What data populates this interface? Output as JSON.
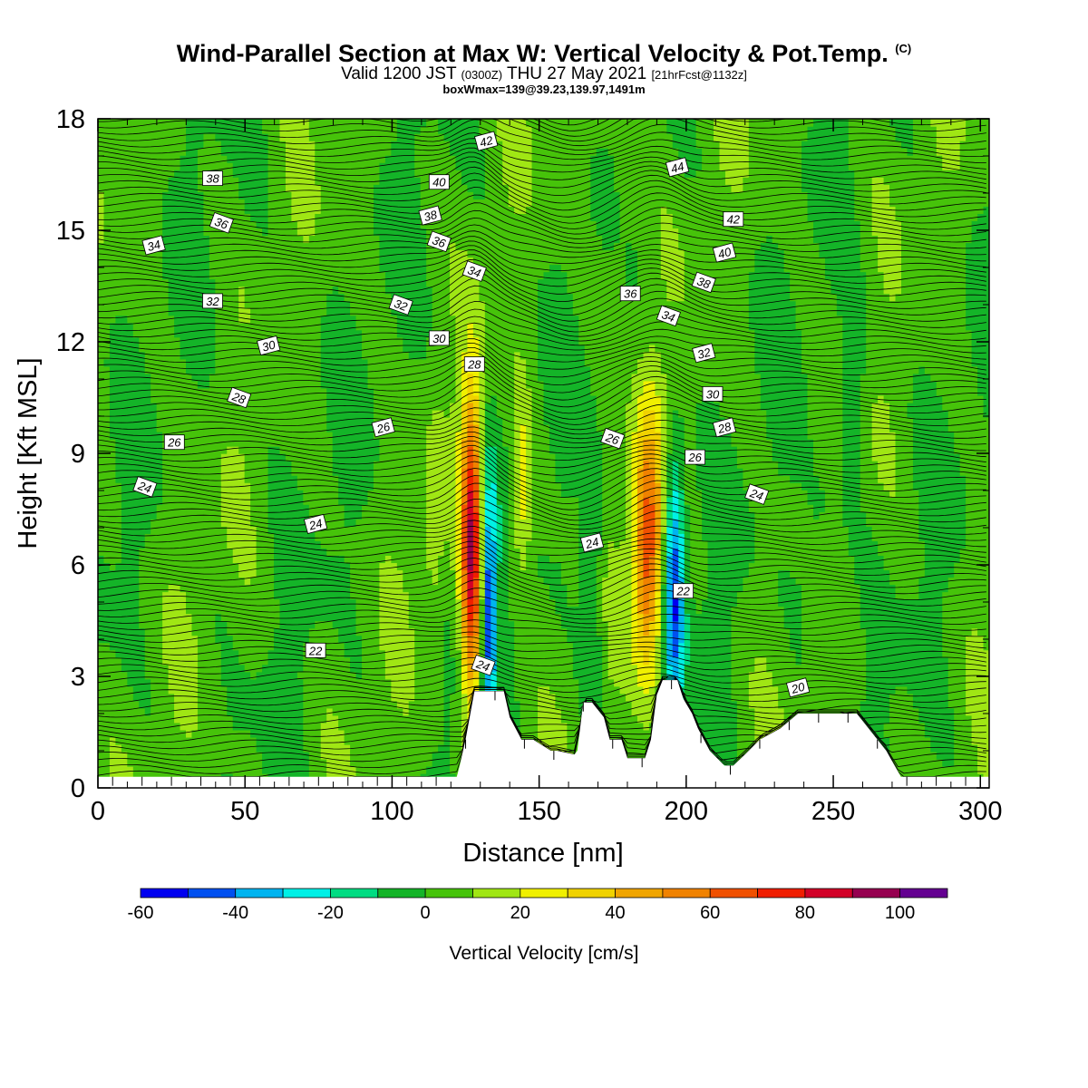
{
  "title": {
    "main": "Wind-Parallel Section at Max W: Vertical Velocity & Pot.Temp.",
    "copyright": "(C)",
    "valid_prefix": "Valid 1200 JST",
    "valid_utc": "(0300Z)",
    "valid_date": "THU 27 May 2021",
    "forecast": "[21hrFcst@1132z]",
    "box_info": "boxWmax=139@39.23,139.97,1491m"
  },
  "colors": {
    "background": "#ffffff",
    "frame": "#000000",
    "contour": "#000000",
    "terrain": "#ffffff"
  },
  "chart_data": {
    "type": "heatmap",
    "title": "Wind-Parallel Section at Max W: Vertical Velocity & Pot.Temp.",
    "xlabel": "Distance [nm]",
    "ylabel": "Height [Kft MSL]",
    "xlim": [
      0,
      303
    ],
    "ylim": [
      0,
      18
    ],
    "x_ticks": [
      0,
      50,
      100,
      150,
      200,
      250,
      300
    ],
    "x_tick_labels": [
      "0",
      "50",
      "100",
      "150",
      "200",
      "250",
      "300"
    ],
    "y_ticks": [
      0,
      3,
      6,
      9,
      12,
      15,
      18
    ],
    "y_tick_labels": [
      "0",
      "3",
      "6",
      "9",
      "12",
      "15",
      "18"
    ],
    "grid": false,
    "colorbar": {
      "label": "Vertical Velocity [cm/s]",
      "placement": "bottom",
      "tick_labels": [
        "-60",
        "-40",
        "-20",
        "0",
        "20",
        "40",
        "60",
        "80",
        "100"
      ],
      "bins": [
        {
          "from": -60,
          "to": -50,
          "color": "#0000f0"
        },
        {
          "from": -50,
          "to": -40,
          "color": "#0050f0"
        },
        {
          "from": -40,
          "to": -30,
          "color": "#00b4f0"
        },
        {
          "from": -30,
          "to": -20,
          "color": "#00f0e6"
        },
        {
          "from": -20,
          "to": -10,
          "color": "#00dc82"
        },
        {
          "from": -10,
          "to": 0,
          "color": "#14b428"
        },
        {
          "from": 0,
          "to": 10,
          "color": "#46c30a"
        },
        {
          "from": 10,
          "to": 20,
          "color": "#a0e614"
        },
        {
          "from": 20,
          "to": 30,
          "color": "#f0f000"
        },
        {
          "from": 30,
          "to": 40,
          "color": "#f0d200"
        },
        {
          "from": 40,
          "to": 50,
          "color": "#f0a500"
        },
        {
          "from": 50,
          "to": 60,
          "color": "#f08200"
        },
        {
          "from": 60,
          "to": 70,
          "color": "#f05000"
        },
        {
          "from": 70,
          "to": 80,
          "color": "#f01e00"
        },
        {
          "from": 80,
          "to": 90,
          "color": "#d20028"
        },
        {
          "from": 90,
          "to": 100,
          "color": "#960050"
        },
        {
          "from": 100,
          "to": 110,
          "color": "#640091"
        }
      ]
    },
    "updrafts": [
      {
        "x": 127,
        "center_height": 6.5,
        "peak": 85,
        "half_width_nm": 3.5,
        "half_depth_kft": 4.2
      },
      {
        "x": 187,
        "center_height": 6.5,
        "peak": 65,
        "half_width_nm": 5,
        "half_depth_kft": 3.5
      },
      {
        "x": 144,
        "center_height": 7.8,
        "peak": 25,
        "half_width_nm": 3.5,
        "half_depth_kft": 2.5
      },
      {
        "x": 114,
        "center_height": 6.5,
        "peak": 12,
        "half_width_nm": 3,
        "half_depth_kft": 3
      },
      {
        "x": 178,
        "center_height": 15.0,
        "peak": 8,
        "half_width_nm": 6,
        "half_depth_kft": 3
      }
    ],
    "downdrafts": [
      {
        "x": 133,
        "center_height": 5.0,
        "peak": -52,
        "half_width_nm": 2.5,
        "half_depth_kft": 3.5
      },
      {
        "x": 196,
        "center_height": 5.5,
        "peak": -55,
        "half_width_nm": 3.5,
        "half_depth_kft": 3.5
      },
      {
        "x": 168,
        "center_height": 5.5,
        "peak": -20,
        "half_width_nm": 3.5,
        "half_depth_kft": 3.5
      },
      {
        "x": 257,
        "center_height": 11.0,
        "peak": -14,
        "half_width_nm": 4,
        "half_depth_kft": 2.5
      },
      {
        "x": 245,
        "center_height": 6.5,
        "peak": -12,
        "half_width_nm": 8,
        "half_depth_kft": 2.5
      }
    ],
    "terrain": {
      "x": [
        0,
        122,
        123,
        125,
        128,
        138,
        140,
        144,
        148,
        154,
        156,
        162,
        163,
        165,
        168,
        172,
        174,
        178,
        180,
        186,
        188,
        190,
        192,
        197,
        199,
        202,
        204,
        208,
        213,
        216,
        220,
        225,
        232,
        238,
        248,
        258,
        262,
        268,
        273,
        303
      ],
      "height": [
        0.3,
        0.3,
        0.6,
        1.3,
        2.6,
        2.6,
        1.9,
        1.3,
        1.3,
        1.0,
        1.0,
        0.9,
        1.0,
        2.3,
        2.3,
        1.9,
        1.3,
        1.3,
        0.8,
        0.8,
        1.3,
        2.5,
        2.9,
        2.9,
        2.4,
        2.0,
        1.6,
        1.0,
        0.6,
        0.6,
        0.9,
        1.3,
        1.6,
        2.0,
        2.0,
        2.0,
        1.6,
        1.0,
        0.3,
        0.3
      ]
    },
    "theta_contours": {
      "interval_K": 2,
      "label_values": [
        20,
        22,
        24,
        26,
        28,
        30,
        32,
        34,
        36,
        38,
        40,
        42,
        44
      ],
      "labels": [
        {
          "text": "38",
          "x": 39,
          "y": 16.4
        },
        {
          "text": "36",
          "x": 42,
          "y": 15.2
        },
        {
          "text": "34",
          "x": 19,
          "y": 14.6
        },
        {
          "text": "32",
          "x": 39,
          "y": 13.1
        },
        {
          "text": "30",
          "x": 58,
          "y": 11.9
        },
        {
          "text": "28",
          "x": 48,
          "y": 10.5
        },
        {
          "text": "26",
          "x": 26,
          "y": 9.3
        },
        {
          "text": "24",
          "x": 16,
          "y": 8.1
        },
        {
          "text": "24",
          "x": 74,
          "y": 7.1
        },
        {
          "text": "22",
          "x": 74,
          "y": 3.7
        },
        {
          "text": "26",
          "x": 97,
          "y": 9.7
        },
        {
          "text": "32",
          "x": 103,
          "y": 13.0
        },
        {
          "text": "30",
          "x": 116,
          "y": 12.1
        },
        {
          "text": "36",
          "x": 116,
          "y": 14.7
        },
        {
          "text": "38",
          "x": 113,
          "y": 15.4
        },
        {
          "text": "40",
          "x": 116,
          "y": 16.3
        },
        {
          "text": "42",
          "x": 132,
          "y": 17.4
        },
        {
          "text": "34",
          "x": 128,
          "y": 13.9
        },
        {
          "text": "28",
          "x": 128,
          "y": 11.4
        },
        {
          "text": "24",
          "x": 131,
          "y": 3.3
        },
        {
          "text": "44",
          "x": 197,
          "y": 16.7
        },
        {
          "text": "42",
          "x": 216,
          "y": 15.3
        },
        {
          "text": "40",
          "x": 213,
          "y": 14.4
        },
        {
          "text": "38",
          "x": 206,
          "y": 13.6
        },
        {
          "text": "36",
          "x": 181,
          "y": 13.3
        },
        {
          "text": "34",
          "x": 194,
          "y": 12.7
        },
        {
          "text": "32",
          "x": 206,
          "y": 11.7
        },
        {
          "text": "30",
          "x": 209,
          "y": 10.6
        },
        {
          "text": "28",
          "x": 213,
          "y": 9.7
        },
        {
          "text": "26",
          "x": 175,
          "y": 9.4
        },
        {
          "text": "26",
          "x": 203,
          "y": 8.9
        },
        {
          "text": "24",
          "x": 224,
          "y": 7.9
        },
        {
          "text": "24",
          "x": 168,
          "y": 6.6
        },
        {
          "text": "22",
          "x": 199,
          "y": 5.3
        },
        {
          "text": "20",
          "x": 238,
          "y": 2.7
        }
      ]
    }
  }
}
